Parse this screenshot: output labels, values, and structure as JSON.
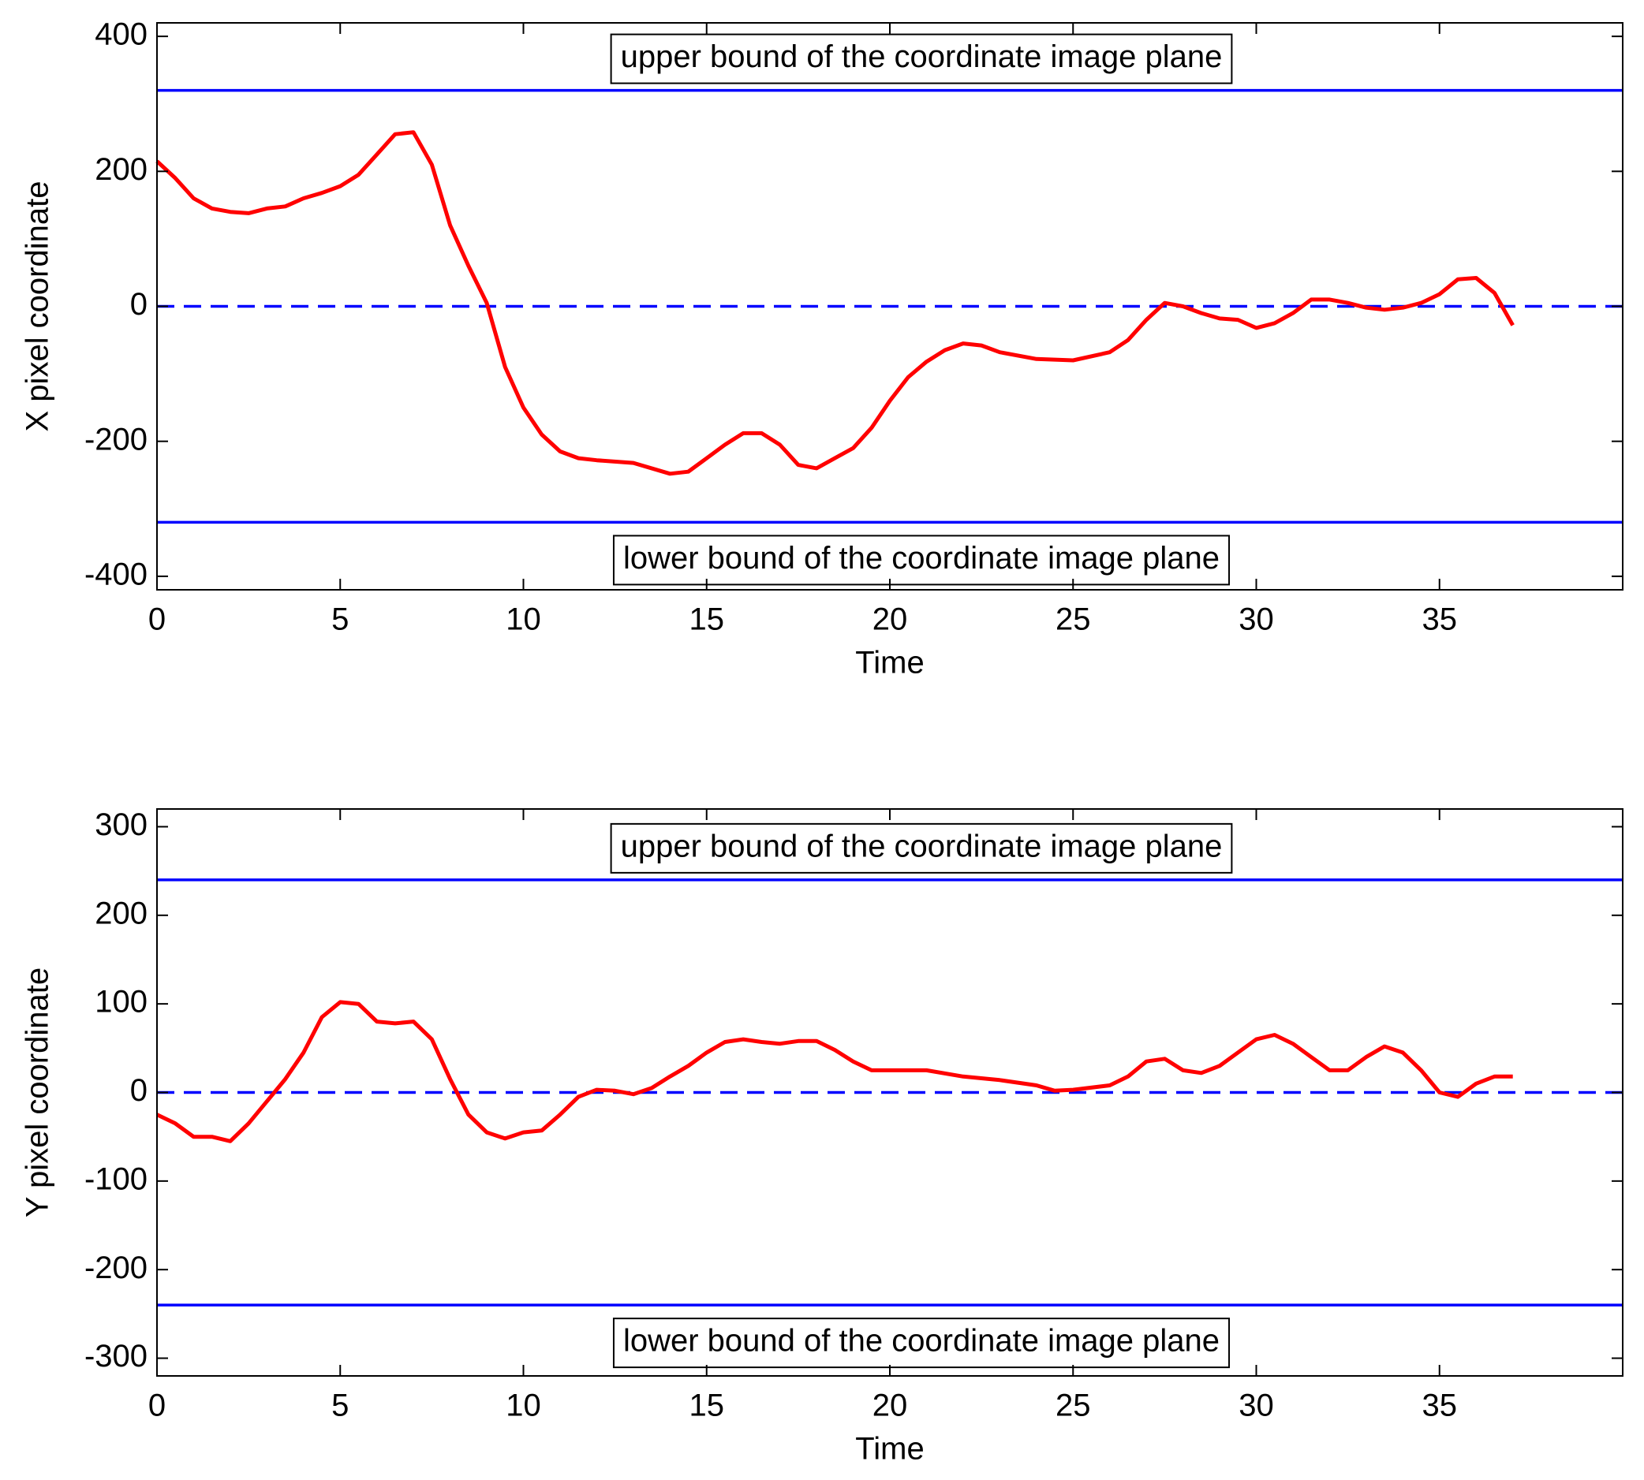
{
  "chart_data": [
    {
      "type": "line",
      "xlabel": "Time",
      "ylabel": "X pixel coordinate",
      "xlim": [
        0,
        40
      ],
      "xticks": [
        0,
        5,
        10,
        15,
        20,
        25,
        30,
        35
      ],
      "ylim": [
        -420,
        420
      ],
      "yticks": [
        -400,
        -200,
        0,
        200,
        400
      ],
      "x": [
        0,
        0.5,
        1,
        1.5,
        2,
        2.5,
        3,
        3.5,
        4,
        4.5,
        5,
        5.5,
        6,
        6.5,
        7,
        7.5,
        8,
        8.5,
        9,
        9.5,
        10,
        10.5,
        11,
        11.5,
        12,
        13,
        14,
        14.5,
        15,
        15.5,
        16,
        16.5,
        17,
        17.5,
        18,
        18.5,
        19,
        19.5,
        20,
        20.5,
        21,
        21.5,
        22,
        22.5,
        23,
        24,
        25,
        26,
        26.5,
        27,
        27.5,
        28,
        28.5,
        29,
        29.5,
        30,
        30.5,
        31,
        31.5,
        32,
        32.5,
        33,
        33.5,
        34,
        34.5,
        35,
        35.5,
        36,
        36.5,
        37
      ],
      "series": [
        {
          "color": "#ff0000",
          "values": [
            215,
            190,
            160,
            145,
            140,
            138,
            145,
            148,
            160,
            168,
            178,
            195,
            225,
            255,
            258,
            210,
            120,
            60,
            5,
            -90,
            -150,
            -190,
            -215,
            -225,
            -228,
            -232,
            -248,
            -245,
            -225,
            -205,
            -188,
            -188,
            -205,
            -235,
            -240,
            -225,
            -210,
            -180,
            -140,
            -105,
            -82,
            -65,
            -55,
            -58,
            -68,
            -78,
            -80,
            -68,
            -50,
            -20,
            5,
            0,
            -10,
            -18,
            -20,
            -32,
            -25,
            -10,
            10,
            10,
            5,
            -2,
            -5,
            -2,
            5,
            18,
            40,
            42,
            20,
            -28
          ]
        }
      ],
      "hlines": [
        {
          "value": 320,
          "color": "#0000ff",
          "dashed": false,
          "label": "upper bound of the coordinate image plane"
        },
        {
          "value": -320,
          "color": "#0000ff",
          "dashed": false,
          "label": "lower bound of the coordinate image plane"
        },
        {
          "value": 0,
          "color": "#0000ff",
          "dashed": true
        }
      ]
    },
    {
      "type": "line",
      "xlabel": "Time",
      "ylabel": "Y pixel coordinate",
      "xlim": [
        0,
        40
      ],
      "xticks": [
        0,
        5,
        10,
        15,
        20,
        25,
        30,
        35
      ],
      "ylim": [
        -320,
        320
      ],
      "yticks": [
        -300,
        -200,
        -100,
        0,
        100,
        200,
        300
      ],
      "x": [
        0,
        0.5,
        1,
        1.5,
        2,
        2.5,
        3,
        3.5,
        4,
        4.5,
        5,
        5.5,
        6,
        6.5,
        7,
        7.5,
        8,
        8.5,
        9,
        9.5,
        10,
        10.5,
        11,
        11.5,
        12,
        12.5,
        13,
        13.5,
        14,
        14.5,
        15,
        15.5,
        16,
        16.5,
        17,
        17.5,
        18,
        18.5,
        19,
        19.5,
        20,
        21,
        22,
        23,
        24,
        24.5,
        25,
        26,
        26.5,
        27,
        27.5,
        28,
        28.5,
        29,
        29.5,
        30,
        30.5,
        31,
        31.5,
        32,
        32.5,
        33,
        33.5,
        34,
        34.5,
        35,
        35.5,
        36,
        36.5,
        37
      ],
      "series": [
        {
          "color": "#ff0000",
          "values": [
            -25,
            -35,
            -50,
            -50,
            -55,
            -35,
            -10,
            15,
            45,
            85,
            102,
            100,
            80,
            78,
            80,
            60,
            15,
            -25,
            -45,
            -52,
            -45,
            -43,
            -25,
            -5,
            3,
            2,
            -2,
            5,
            18,
            30,
            45,
            57,
            60,
            57,
            55,
            58,
            58,
            48,
            35,
            25,
            25,
            25,
            18,
            14,
            8,
            2,
            3,
            8,
            18,
            35,
            38,
            25,
            22,
            30,
            45,
            60,
            65,
            55,
            40,
            25,
            25,
            40,
            52,
            45,
            25,
            0,
            -5,
            10,
            18,
            18
          ]
        }
      ],
      "hlines": [
        {
          "value": 240,
          "color": "#0000ff",
          "dashed": false,
          "label": "upper bound of the coordinate image plane"
        },
        {
          "value": -240,
          "color": "#0000ff",
          "dashed": false,
          "label": "lower bound of the coordinate image plane"
        },
        {
          "value": 0,
          "color": "#0000ff",
          "dashed": true
        }
      ]
    }
  ]
}
